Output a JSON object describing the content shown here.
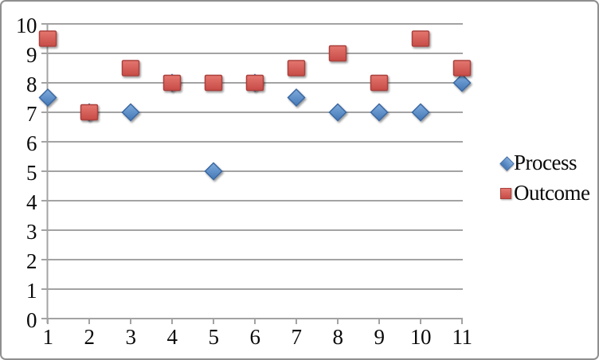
{
  "chart_data": {
    "type": "scatter",
    "x": [
      1,
      2,
      3,
      4,
      5,
      6,
      7,
      8,
      9,
      10,
      11
    ],
    "series": [
      {
        "name": "Process",
        "marker": "diamond",
        "values": [
          7.5,
          7,
          7,
          8,
          5,
          8,
          7.5,
          7,
          7,
          7,
          8
        ],
        "color_top": "#7fabdc",
        "color_bottom": "#4478b6",
        "border_color": "#3a67a2"
      },
      {
        "name": "Outcome",
        "marker": "square",
        "values": [
          9.5,
          7,
          8.5,
          8,
          8,
          8,
          8.5,
          9,
          8,
          9.5,
          8.5
        ],
        "color_top": "#e4776f",
        "color_bottom": "#c74b47",
        "border_color": "#aa413d"
      }
    ],
    "xticks": [
      "1",
      "2",
      "3",
      "4",
      "5",
      "6",
      "7",
      "8",
      "9",
      "10",
      "11"
    ],
    "yticks": [
      "0",
      "1",
      "2",
      "3",
      "4",
      "5",
      "6",
      "7",
      "8",
      "9",
      "10"
    ],
    "xlim": [
      1,
      11
    ],
    "ylim": [
      0,
      10
    ],
    "grid": true,
    "legend_position": "right",
    "title": "",
    "xlabel": "",
    "ylabel": "",
    "grid_color": "#a3a3a3",
    "axis_color": "#a3a3a3",
    "text_color": "#0a0a0a"
  },
  "legend": {
    "items": [
      {
        "label": "Process"
      },
      {
        "label": "Outcome"
      }
    ]
  }
}
